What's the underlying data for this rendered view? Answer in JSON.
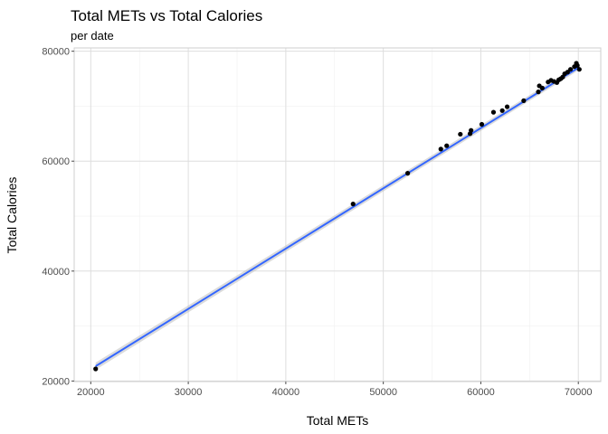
{
  "chart_data": {
    "type": "scatter",
    "title": "Total METs vs Total Calories",
    "subtitle": "per date",
    "xlabel": "Total METs",
    "ylabel": "Total Calories",
    "xlim": [
      18300,
      72300
    ],
    "ylim": [
      19900,
      80600
    ],
    "x_ticks": [
      20000,
      30000,
      40000,
      50000,
      60000,
      70000
    ],
    "y_ticks": [
      20000,
      40000,
      60000,
      80000
    ],
    "x_tick_labels": [
      "20000",
      "30000",
      "40000",
      "50000",
      "60000",
      "70000"
    ],
    "y_tick_labels": [
      "20000",
      "40000",
      "60000",
      "80000"
    ],
    "grid": true,
    "legend": "none",
    "colors": {
      "points": "#000000",
      "trend": "#3366ff",
      "band": "#bdbdbd",
      "grid": "#dedede",
      "panel_border": "#cfcfcf"
    },
    "series": [
      {
        "x": [
          20500,
          46900,
          52500,
          55900,
          56500,
          57900,
          58900,
          59000,
          60100,
          61300,
          62200,
          62700,
          64400,
          65900,
          66000,
          66300,
          66900,
          67200,
          67500,
          67800,
          68000,
          68200,
          68400,
          68600,
          68900,
          69200,
          69600,
          69800,
          69900,
          70100
        ],
        "y": [
          22200,
          52200,
          57800,
          62200,
          62800,
          64900,
          65000,
          65600,
          66700,
          68900,
          69200,
          69900,
          71000,
          72600,
          73700,
          73300,
          74400,
          74700,
          74500,
          74300,
          74800,
          75000,
          75300,
          75900,
          76200,
          76700,
          77200,
          77800,
          77400,
          76700
        ]
      }
    ],
    "trend_line": {
      "x": [
        20500,
        70100
      ],
      "y": [
        22700,
        77100
      ]
    }
  }
}
